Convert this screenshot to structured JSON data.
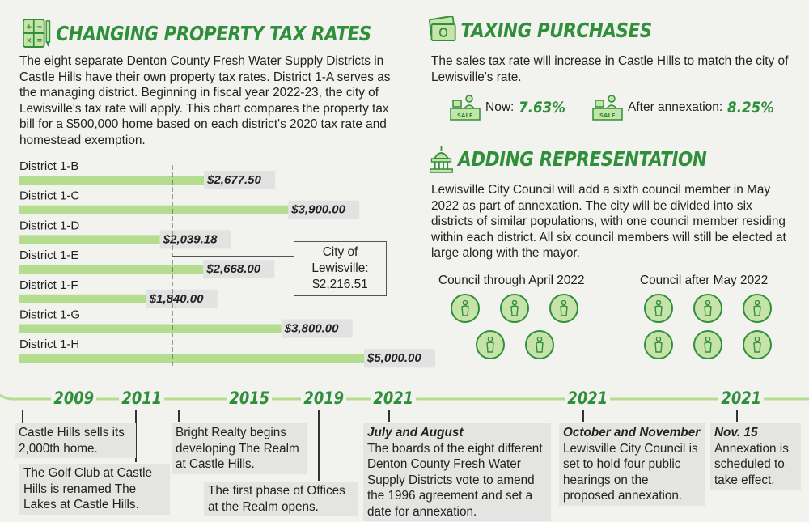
{
  "colors": {
    "accent": "#2f8f3a",
    "bar": "#b5dd8f",
    "icon_fill": "#c6e4a9"
  },
  "property_tax": {
    "title": "CHANGING PROPERTY TAX RATES",
    "icon": "calculator-icon",
    "body": "The eight separate Denton County Fresh Water Supply Districts in Castle Hills have their own property tax rates. District 1-A serves as the managing district. Beginning in fiscal year 2022-23, the city of Lewisville's tax rate will apply. This chart compares the property tax bill for a $500,000 home based on each district's 2020 tax rate and homestead exemption.",
    "callout_line1": "City of",
    "callout_line2": "Lewisville:",
    "callout_value": "$2,216.51"
  },
  "chart_data": {
    "type": "bar",
    "orientation": "horizontal",
    "categories": [
      "District 1-B",
      "District 1-C",
      "District 1-D",
      "District 1-E",
      "District 1-F",
      "District 1-G",
      "District 1-H"
    ],
    "values": [
      2677.5,
      3900.0,
      2039.18,
      2668.0,
      1840.0,
      3800.0,
      5000.0
    ],
    "value_labels": [
      "$2,677.50",
      "$3,900.00",
      "$2,039.18",
      "$2,668.00",
      "$1,840.00",
      "$3,800.00",
      "$5,000.00"
    ],
    "reference_line": {
      "label": "City of Lewisville:",
      "value": 2216.51
    },
    "xlim": [
      0,
      5000
    ],
    "grid": false,
    "title": "",
    "xlabel": "",
    "ylabel": ""
  },
  "purchases": {
    "title": "TAXING PURCHASES",
    "icon": "money-icon",
    "body": "The sales tax rate will increase in Castle Hills to match the city of Lewisville's rate.",
    "now_label": "Now:",
    "now_value": "7.63%",
    "after_label": "After annexation:",
    "after_value": "8.25%",
    "sale_icon_text": "SALE"
  },
  "representation": {
    "title": "ADDING REPRESENTATION",
    "icon": "capitol-icon",
    "body": "Lewisville City Council will add a sixth council member in May 2022 as part of annexation. The city will be divided into six districts of similar populations, with one council member residing within each district. All six council members will still be elected at large along with the mayor.",
    "before_label": "Council through April 2022",
    "before_count": 5,
    "after_label": "Council after May 2022",
    "after_count": 6
  },
  "timeline": {
    "events": [
      {
        "year": "2009",
        "text": "Castle Hills sells its 2,000th home."
      },
      {
        "year": "2011",
        "text": "The Golf Club at Castle Hills is renamed The Lakes at Castle Hills."
      },
      {
        "year": "2015",
        "text": "Bright Realty begins developing The Realm at Castle Hills."
      },
      {
        "year": "2019",
        "text": "The first phase of Offices at the Realm opens."
      },
      {
        "year": "2021",
        "heading": "July and August",
        "text": "The boards of the eight different Denton County Fresh Water Supply Districts vote to amend the 1996 agreement and set a date for annexation."
      },
      {
        "year": "2021",
        "heading": "October and November",
        "text": "Lewisville City Council is set to hold four public hearings on the proposed annexation."
      },
      {
        "year": "2021",
        "heading": "Nov. 15",
        "text": "Annexation is scheduled to take effect."
      }
    ]
  }
}
